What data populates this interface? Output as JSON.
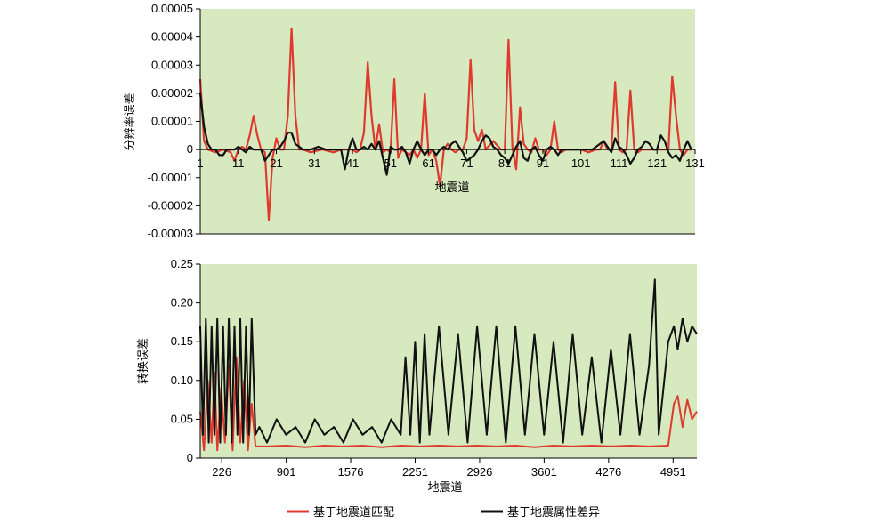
{
  "chart_data": [
    {
      "type": "line",
      "title": "",
      "xlabel": "地震道",
      "ylabel": "分辨率误差",
      "xlim": [
        1,
        131
      ],
      "ylim": [
        -3e-05,
        5e-05
      ],
      "xticks": [
        1,
        11,
        21,
        31,
        41,
        51,
        61,
        71,
        81,
        91,
        101,
        111,
        121,
        131
      ],
      "xtick_labels": [
        "1",
        "11",
        "21",
        "31",
        "41",
        "51",
        "61",
        "71",
        "81",
        "91",
        "101",
        "111",
        "121",
        "131"
      ],
      "yticks": [
        -3e-05,
        -2e-05,
        -1e-05,
        0,
        1e-05,
        2e-05,
        3e-05,
        4e-05,
        5e-05
      ],
      "ytick_labels": [
        "-0.00003",
        "-0.00002",
        "-0.00001",
        "0",
        "0.00001",
        "0.00002",
        "0.00003",
        "0.00004",
        "0.00005"
      ],
      "grid": false,
      "background": "#d6e9bf",
      "series": [
        {
          "name": "基于地震道匹配",
          "color": "#e03a2f",
          "x": [
            1,
            2,
            3,
            5,
            7,
            9,
            10,
            11,
            12,
            13,
            14,
            15,
            16,
            17,
            18,
            19,
            20,
            21,
            22,
            23,
            24,
            25,
            26,
            27,
            28,
            30,
            33,
            36,
            38,
            40,
            41,
            42,
            43,
            44,
            45,
            46,
            47,
            48,
            49,
            50,
            51,
            52,
            53,
            54,
            55,
            56,
            57,
            58,
            59,
            60,
            61,
            62,
            63,
            64,
            65,
            66,
            67,
            68,
            69,
            70,
            71,
            72,
            73,
            74,
            75,
            76,
            78,
            80,
            81,
            82,
            83,
            84,
            85,
            86,
            87,
            88,
            89,
            90,
            91,
            92,
            93,
            94,
            95,
            96,
            97,
            98,
            99,
            100,
            101,
            103,
            105,
            106,
            107,
            108,
            109,
            110,
            111,
            112,
            113,
            114,
            115,
            116,
            117,
            118,
            120,
            122,
            124,
            125,
            126,
            127,
            128,
            129,
            130
          ],
          "values": [
            2.5e-05,
            3e-06,
            0,
            -1e-06,
            0,
            -1e-06,
            -4e-06,
            0,
            1e-06,
            0,
            5e-06,
            1.2e-05,
            5e-06,
            0,
            -1e-06,
            -2.5e-05,
            -3e-06,
            4e-06,
            0,
            0,
            1.2e-05,
            4.3e-05,
            1.2e-05,
            0,
            0,
            -1e-06,
            0,
            -1e-06,
            0,
            0,
            0,
            -1e-06,
            0,
            6e-06,
            3.1e-05,
            1.2e-05,
            0,
            9e-06,
            -1e-06,
            0,
            -1e-06,
            2.5e-05,
            -3e-06,
            0,
            -1e-06,
            -2e-06,
            0,
            -3e-06,
            0,
            2e-05,
            -2e-06,
            0,
            -4e-06,
            -1.3e-05,
            0,
            2e-06,
            0,
            -1e-06,
            0,
            0,
            4e-06,
            3.2e-05,
            7e-06,
            3e-06,
            7e-06,
            0,
            3e-06,
            0,
            0,
            3.9e-05,
            1e-06,
            -7e-06,
            1.5e-05,
            2e-06,
            0,
            -1e-06,
            4e-06,
            0,
            0,
            -2e-06,
            0,
            1e-05,
            0,
            -1e-06,
            0,
            0,
            0,
            0,
            0,
            -1e-06,
            0,
            0,
            3e-06,
            0,
            0,
            2.4e-05,
            0,
            -1e-06,
            0,
            2.1e-05,
            0,
            -1e-06,
            0,
            0,
            0,
            0,
            0,
            2.6e-05,
            1.2e-05,
            0,
            -2e-06,
            0,
            0
          ]
        },
        {
          "name": "基于地震属性差异",
          "color": "#111111",
          "x": [
            1,
            2,
            3,
            4,
            5,
            6,
            7,
            8,
            9,
            10,
            11,
            12,
            13,
            14,
            15,
            16,
            17,
            18,
            19,
            20,
            21,
            22,
            23,
            24,
            25,
            26,
            27,
            28,
            30,
            32,
            34,
            36,
            38,
            39,
            40,
            41,
            42,
            43,
            44,
            45,
            46,
            47,
            48,
            49,
            50,
            51,
            52,
            53,
            54,
            55,
            56,
            57,
            58,
            59,
            60,
            61,
            62,
            63,
            64,
            65,
            66,
            67,
            68,
            69,
            70,
            71,
            72,
            73,
            74,
            75,
            76,
            77,
            78,
            79,
            80,
            81,
            82,
            83,
            84,
            85,
            86,
            87,
            88,
            89,
            90,
            91,
            92,
            93,
            94,
            95,
            96,
            97,
            98,
            100,
            102,
            104,
            106,
            107,
            108,
            109,
            110,
            111,
            112,
            113,
            114,
            115,
            116,
            117,
            118,
            119,
            120,
            121,
            122,
            123,
            124,
            125,
            126,
            127,
            128,
            129,
            130
          ],
          "values": [
            2e-05,
            8e-06,
            2e-06,
            0,
            0,
            -2e-06,
            -2e-06,
            0,
            0,
            0,
            1e-06,
            0,
            -1e-06,
            1e-06,
            0,
            0,
            0,
            -4e-06,
            -2e-06,
            0,
            0,
            1e-06,
            3e-06,
            6e-06,
            6e-06,
            2e-06,
            1e-06,
            0,
            0,
            1e-06,
            0,
            0,
            0,
            -7e-06,
            0,
            4e-06,
            0,
            0,
            1e-06,
            0,
            2e-06,
            0,
            3e-06,
            -3e-06,
            -9e-06,
            1e-06,
            0,
            0,
            1e-06,
            -1e-06,
            -5e-06,
            0,
            3e-06,
            0,
            -2e-06,
            0,
            0,
            -2e-06,
            0,
            1e-06,
            0,
            2e-06,
            3e-06,
            1e-06,
            -1e-06,
            -4e-06,
            -3e-06,
            -2e-06,
            0,
            3e-06,
            5e-06,
            4e-06,
            1e-06,
            0,
            -2e-06,
            -3e-06,
            -5e-06,
            -2e-06,
            1e-06,
            3e-06,
            -3e-06,
            -4e-06,
            0,
            1e-06,
            -2e-06,
            -4e-06,
            0,
            1e-06,
            0,
            -2e-06,
            0,
            0,
            0,
            0,
            0,
            0,
            2e-06,
            3e-06,
            1e-06,
            -1e-06,
            4e-06,
            1e-06,
            0,
            -2e-06,
            -5e-06,
            -3e-06,
            0,
            1e-06,
            3e-06,
            2e-06,
            0,
            0,
            5e-06,
            3e-06,
            -1e-06,
            -3e-06,
            -2e-06,
            -4e-06,
            0,
            3e-06,
            0
          ]
        }
      ]
    },
    {
      "type": "line",
      "title": "",
      "xlabel": "地震道",
      "ylabel": "转换误差",
      "xlim": [
        1,
        5200
      ],
      "ylim": [
        0,
        0.25
      ],
      "xticks": [
        226,
        901,
        1576,
        2251,
        2926,
        3601,
        4276,
        4951
      ],
      "xtick_labels": [
        "226",
        "901",
        "1576",
        "2251",
        "2926",
        "3601",
        "4276",
        "4951"
      ],
      "yticks": [
        0,
        0.05,
        0.1,
        0.15,
        0.2,
        0.25
      ],
      "ytick_labels": [
        "0",
        "0.05",
        "0.10",
        "0.15",
        "0.20",
        "0.25"
      ],
      "grid": false,
      "background": "#d6e9bf",
      "series": [
        {
          "name": "基于地震道匹配",
          "color": "#e03a2f",
          "x": [
            1,
            40,
            80,
            120,
            150,
            180,
            220,
            260,
            300,
            340,
            380,
            420,
            460,
            500,
            540,
            580,
            620,
            700,
            900,
            1100,
            1300,
            1500,
            1700,
            1900,
            2100,
            2300,
            2500,
            2700,
            2900,
            3100,
            3300,
            3500,
            3700,
            3900,
            4100,
            4300,
            4500,
            4700,
            4900,
            4960,
            5000,
            5050,
            5100,
            5150,
            5200
          ],
          "values": [
            0.06,
            0.01,
            0.1,
            0.02,
            0.11,
            0.01,
            0.09,
            0.02,
            0.12,
            0.01,
            0.13,
            0.02,
            0.1,
            0.01,
            0.07,
            0.015,
            0.015,
            0.015,
            0.016,
            0.014,
            0.016,
            0.015,
            0.016,
            0.014,
            0.016,
            0.015,
            0.016,
            0.015,
            0.016,
            0.015,
            0.016,
            0.014,
            0.016,
            0.015,
            0.016,
            0.015,
            0.016,
            0.015,
            0.016,
            0.07,
            0.08,
            0.04,
            0.075,
            0.05,
            0.06
          ]
        },
        {
          "name": "基于地震属性差异",
          "color": "#111111",
          "x": [
            1,
            30,
            60,
            90,
            120,
            150,
            180,
            210,
            240,
            270,
            300,
            330,
            360,
            390,
            420,
            450,
            480,
            510,
            540,
            580,
            620,
            700,
            800,
            900,
            1000,
            1100,
            1200,
            1300,
            1400,
            1500,
            1600,
            1700,
            1800,
            1900,
            2000,
            2100,
            2150,
            2200,
            2250,
            2300,
            2350,
            2400,
            2500,
            2600,
            2700,
            2800,
            2900,
            3000,
            3100,
            3200,
            3300,
            3400,
            3500,
            3600,
            3700,
            3800,
            3900,
            4000,
            4100,
            4200,
            4300,
            4400,
            4500,
            4600,
            4700,
            4760,
            4800,
            4900,
            4960,
            5000,
            5050,
            5100,
            5150,
            5200
          ],
          "values": [
            0.17,
            0.03,
            0.18,
            0.02,
            0.17,
            0.03,
            0.18,
            0.02,
            0.17,
            0.03,
            0.18,
            0.02,
            0.17,
            0.03,
            0.18,
            0.02,
            0.17,
            0.03,
            0.18,
            0.03,
            0.04,
            0.02,
            0.05,
            0.03,
            0.04,
            0.02,
            0.05,
            0.03,
            0.04,
            0.02,
            0.05,
            0.03,
            0.04,
            0.02,
            0.05,
            0.03,
            0.13,
            0.03,
            0.15,
            0.02,
            0.16,
            0.03,
            0.17,
            0.03,
            0.16,
            0.02,
            0.17,
            0.03,
            0.17,
            0.02,
            0.17,
            0.03,
            0.16,
            0.03,
            0.15,
            0.02,
            0.16,
            0.03,
            0.13,
            0.02,
            0.14,
            0.03,
            0.16,
            0.03,
            0.12,
            0.23,
            0.03,
            0.15,
            0.17,
            0.14,
            0.18,
            0.15,
            0.17,
            0.16
          ]
        }
      ]
    }
  ],
  "legend": {
    "placement": "bottom",
    "items": [
      {
        "label": "基于地震道匹配",
        "color": "#e03a2f"
      },
      {
        "label": "基于地震属性差异",
        "color": "#111111"
      }
    ]
  }
}
